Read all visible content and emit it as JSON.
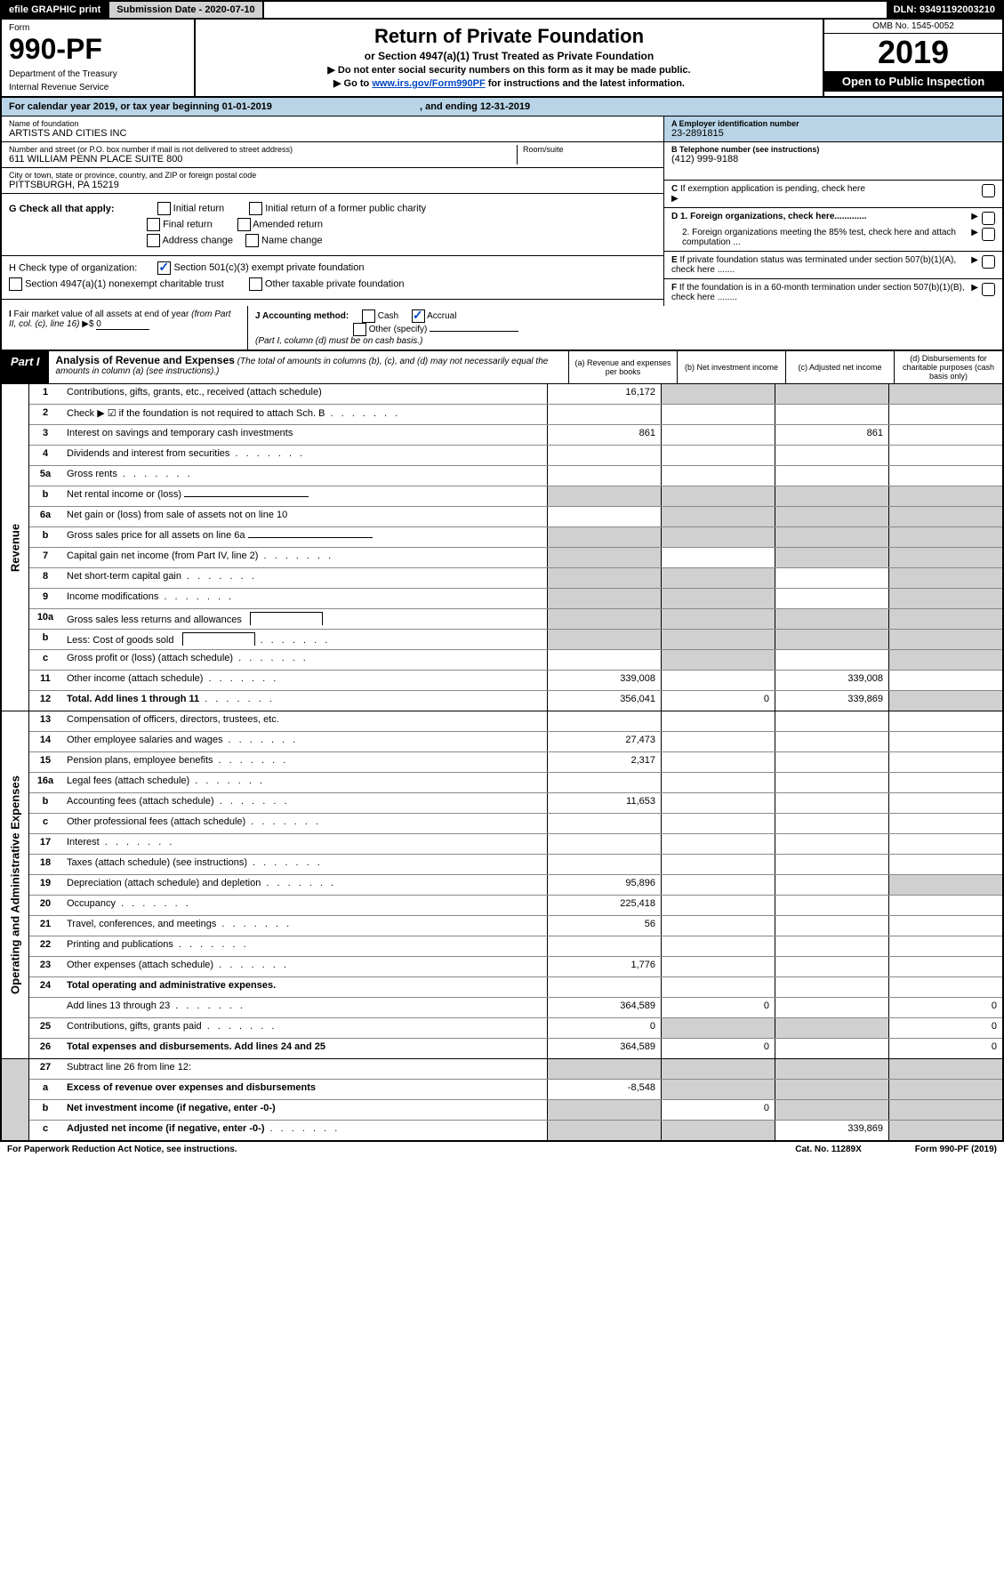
{
  "topbar": {
    "efile": "efile GRAPHIC print",
    "submission": "Submission Date - 2020-07-10",
    "dln": "DLN: 93491192003210"
  },
  "header": {
    "form_label": "Form",
    "form_num": "990-PF",
    "dept1": "Department of the Treasury",
    "dept2": "Internal Revenue Service",
    "title": "Return of Private Foundation",
    "subtitle": "or Section 4947(a)(1) Trust Treated as Private Foundation",
    "note1": "▶ Do not enter social security numbers on this form as it may be made public.",
    "note2_pre": "▶ Go to ",
    "note2_link": "www.irs.gov/Form990PF",
    "note2_post": " for instructions and the latest information.",
    "omb": "OMB No. 1545-0052",
    "year": "2019",
    "open": "Open to Public Inspection"
  },
  "cal": {
    "text_a": "For calendar year 2019, or tax year beginning 01-01-2019",
    "text_b": ", and ending 12-31-2019"
  },
  "info": {
    "name_label": "Name of foundation",
    "name": "ARTISTS AND CITIES INC",
    "addr_label": "Number and street (or P.O. box number if mail is not delivered to street address)",
    "addr": "611 WILLIAM PENN PLACE SUITE 800",
    "room_label": "Room/suite",
    "city_label": "City or town, state or province, country, and ZIP or foreign postal code",
    "city": "PITTSBURGH, PA  15219",
    "a_label": "A Employer identification number",
    "a_val": "23-2891815",
    "b_label": "B Telephone number (see instructions)",
    "b_val": "(412) 999-9188",
    "c_label": "C  If exemption application is pending, check here",
    "d1": "D 1. Foreign organizations, check here.............",
    "d2": "2. Foreign organizations meeting the 85% test, check here and attach computation ...",
    "e": "E  If private foundation status was terminated under section 507(b)(1)(A), check here .......",
    "f": "F  If the foundation is in a 60-month termination under section 507(b)(1)(B), check here ........"
  },
  "checks": {
    "g_label": "G Check all that apply:",
    "g_opts": [
      "Initial return",
      "Initial return of a former public charity",
      "Final return",
      "Amended return",
      "Address change",
      "Name change"
    ],
    "h_label": "H Check type of organization:",
    "h1": "Section 501(c)(3) exempt private foundation",
    "h2": "Section 4947(a)(1) nonexempt charitable trust",
    "h3": "Other taxable private foundation",
    "i_label": "I Fair market value of all assets at end of year (from Part II, col. (c), line 16) ▶$",
    "i_val": "0",
    "j_label": "J Accounting method:",
    "j_opts": [
      "Cash",
      "Accrual",
      "Other (specify)"
    ],
    "j_note": "(Part I, column (d) must be on cash basis.)"
  },
  "part1": {
    "label": "Part I",
    "title": "Analysis of Revenue and Expenses",
    "sub": "(The total of amounts in columns (b), (c), and (d) may not necessarily equal the amounts in column (a) (see instructions).)",
    "col_a": "(a)    Revenue and expenses per books",
    "col_b": "(b)   Net investment income",
    "col_c": "(c)   Adjusted net income",
    "col_d": "(d)   Disbursements for charitable purposes (cash basis only)"
  },
  "sides": {
    "revenue": "Revenue",
    "expenses": "Operating and Administrative Expenses"
  },
  "rows": [
    {
      "n": "1",
      "d": "Contributions, gifts, grants, etc., received (attach schedule)",
      "a": "16,172",
      "b": "g",
      "c": "g",
      "dd": "g"
    },
    {
      "n": "2",
      "d": "Check ▶ ☑ if the foundation is not required to attach Sch. B",
      "dots": true
    },
    {
      "n": "3",
      "d": "Interest on savings and temporary cash investments",
      "a": "861",
      "c": "861"
    },
    {
      "n": "4",
      "d": "Dividends and interest from securities",
      "dots": true
    },
    {
      "n": "5a",
      "d": "Gross rents",
      "dots": true
    },
    {
      "n": "b",
      "d": "Net rental income or (loss)",
      "ul": true,
      "a": "g",
      "b": "g",
      "c": "g",
      "dd": "g"
    },
    {
      "n": "6a",
      "d": "Net gain or (loss) from sale of assets not on line 10",
      "b": "g",
      "c": "g",
      "dd": "g"
    },
    {
      "n": "b",
      "d": "Gross sales price for all assets on line 6a",
      "ul": true,
      "a": "g",
      "b": "g",
      "c": "g",
      "dd": "g"
    },
    {
      "n": "7",
      "d": "Capital gain net income (from Part IV, line 2)",
      "dots": true,
      "a": "g",
      "c": "g",
      "dd": "g"
    },
    {
      "n": "8",
      "d": "Net short-term capital gain",
      "dots": true,
      "a": "g",
      "b": "g",
      "dd": "g"
    },
    {
      "n": "9",
      "d": "Income modifications",
      "dots": true,
      "a": "g",
      "b": "g",
      "dd": "g"
    },
    {
      "n": "10a",
      "d": "Gross sales less returns and allowances",
      "ulbox": true,
      "a": "g",
      "b": "g",
      "c": "g",
      "dd": "g"
    },
    {
      "n": "b",
      "d": "Less: Cost of goods sold",
      "dots": true,
      "ulbox": true,
      "a": "g",
      "b": "g",
      "c": "g",
      "dd": "g"
    },
    {
      "n": "c",
      "d": "Gross profit or (loss) (attach schedule)",
      "dots": true,
      "b": "g",
      "dd": "g"
    },
    {
      "n": "11",
      "d": "Other income (attach schedule)",
      "dots": true,
      "a": "339,008",
      "c": "339,008"
    },
    {
      "n": "12",
      "d": "Total. Add lines 1 through 11",
      "bold": true,
      "dots": true,
      "a": "356,041",
      "b": "0",
      "c": "339,869",
      "dd": "g"
    }
  ],
  "exp_rows": [
    {
      "n": "13",
      "d": "Compensation of officers, directors, trustees, etc."
    },
    {
      "n": "14",
      "d": "Other employee salaries and wages",
      "dots": true,
      "a": "27,473"
    },
    {
      "n": "15",
      "d": "Pension plans, employee benefits",
      "dots": true,
      "a": "2,317"
    },
    {
      "n": "16a",
      "d": "Legal fees (attach schedule)",
      "dots": true
    },
    {
      "n": "b",
      "d": "Accounting fees (attach schedule)",
      "dots": true,
      "a": "11,653"
    },
    {
      "n": "c",
      "d": "Other professional fees (attach schedule)",
      "dots": true
    },
    {
      "n": "17",
      "d": "Interest",
      "dots": true
    },
    {
      "n": "18",
      "d": "Taxes (attach schedule) (see instructions)",
      "dots": true
    },
    {
      "n": "19",
      "d": "Depreciation (attach schedule) and depletion",
      "dots": true,
      "a": "95,896",
      "dd": "g"
    },
    {
      "n": "20",
      "d": "Occupancy",
      "dots": true,
      "a": "225,418"
    },
    {
      "n": "21",
      "d": "Travel, conferences, and meetings",
      "dots": true,
      "a": "56"
    },
    {
      "n": "22",
      "d": "Printing and publications",
      "dots": true
    },
    {
      "n": "23",
      "d": "Other expenses (attach schedule)",
      "dots": true,
      "a": "1,776"
    },
    {
      "n": "24",
      "d": "Total operating and administrative expenses.",
      "bold": true
    },
    {
      "n": "",
      "d": "Add lines 13 through 23",
      "dots": true,
      "a": "364,589",
      "b": "0",
      "dd": "0"
    },
    {
      "n": "25",
      "d": "Contributions, gifts, grants paid",
      "dots": true,
      "a": "0",
      "b": "g",
      "c": "g",
      "dd": "0"
    },
    {
      "n": "26",
      "d": "Total expenses and disbursements. Add lines 24 and 25",
      "bold": true,
      "a": "364,589",
      "b": "0",
      "dd": "0"
    }
  ],
  "final_rows": [
    {
      "n": "27",
      "d": "Subtract line 26 from line 12:",
      "a": "g",
      "b": "g",
      "c": "g",
      "dd": "g"
    },
    {
      "n": "a",
      "d": "Excess of revenue over expenses and disbursements",
      "bold": true,
      "a": "-8,548",
      "b": "g",
      "c": "g",
      "dd": "g"
    },
    {
      "n": "b",
      "d": "Net investment income (if negative, enter -0-)",
      "bold": true,
      "a": "g",
      "b": "0",
      "c": "g",
      "dd": "g"
    },
    {
      "n": "c",
      "d": "Adjusted net income (if negative, enter -0-)",
      "bold": true,
      "dots": true,
      "a": "g",
      "b": "g",
      "c": "339,869",
      "dd": "g"
    }
  ],
  "footer": {
    "left": "For Paperwork Reduction Act Notice, see instructions.",
    "mid": "Cat. No. 11289X",
    "right": "Form 990-PF (2019)"
  }
}
